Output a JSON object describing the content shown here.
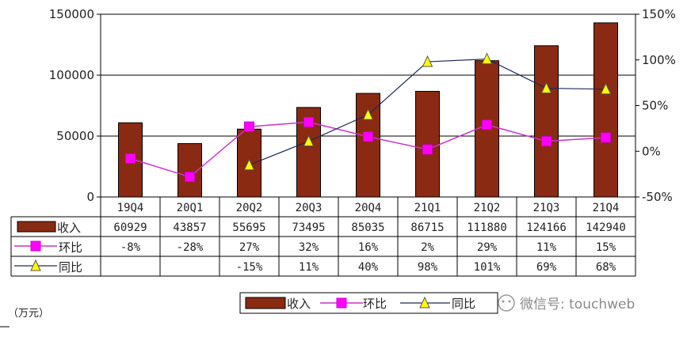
{
  "chart_data": {
    "type": "bar+line",
    "categories": [
      "19Q4",
      "20Q1",
      "20Q2",
      "20Q3",
      "20Q4",
      "21Q1",
      "21Q2",
      "21Q3",
      "21Q4"
    ],
    "bar_series": {
      "name": "收入",
      "values": [
        60929,
        43857,
        55695,
        73495,
        85035,
        86715,
        111880,
        124166,
        142940
      ],
      "color": "#8b2a12"
    },
    "line_series": [
      {
        "name": "环比",
        "values": [
          -8,
          -28,
          27,
          32,
          16,
          2,
          29,
          11,
          15
        ],
        "labels": [
          "-8%",
          "-28%",
          "27%",
          "32%",
          "16%",
          "2%",
          "29%",
          "11%",
          "15%"
        ],
        "color": "#cc33cc",
        "marker_color": "#ff00ff",
        "marker": "square"
      },
      {
        "name": "同比",
        "values": [
          null,
          null,
          -15,
          11,
          40,
          98,
          101,
          69,
          68
        ],
        "labels": [
          "",
          "",
          "-15%",
          "11%",
          "40%",
          "98%",
          "101%",
          "69%",
          "68%"
        ],
        "color": "#1a2a5a",
        "marker_color": "#ffff00",
        "marker": "triangle"
      }
    ],
    "y_left": {
      "min": 0,
      "max": 150000,
      "ticks": [
        "0",
        "50000",
        "100000",
        "150000"
      ]
    },
    "y_right": {
      "min": -50,
      "max": 150,
      "ticks": [
        "-50%",
        "0%",
        "50%",
        "100%",
        "150%"
      ]
    },
    "bar_labels": [
      "60929",
      "43857",
      "55695",
      "73495",
      "85035",
      "86715",
      "111880",
      "124166",
      "142940"
    ],
    "unit": "（万元）",
    "legend": [
      "收入",
      "环比",
      "同比"
    ]
  },
  "watermark": "微信号: touchweb"
}
